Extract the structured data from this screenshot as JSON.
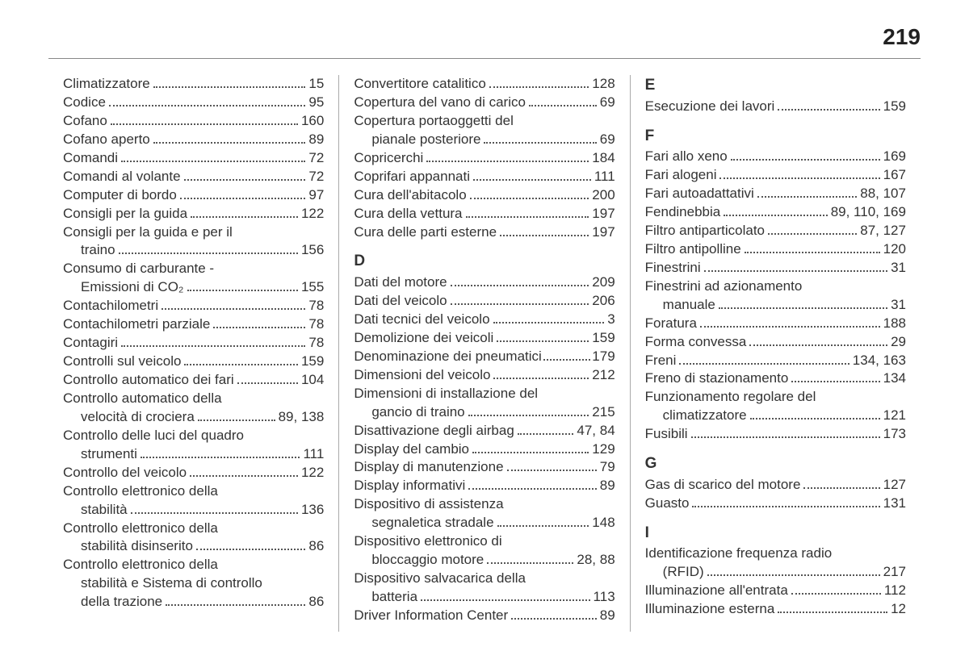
{
  "page_number": "219",
  "columns": [
    {
      "sections": [
        {
          "letter": null,
          "entries": [
            {
              "label": "Climatizzatore",
              "page": "15"
            },
            {
              "label": "Codice",
              "page": "95"
            },
            {
              "label": "Cofano",
              "page": "160"
            },
            {
              "label": "Cofano aperto",
              "page": "89"
            },
            {
              "label": "Comandi",
              "page": "72"
            },
            {
              "label": "Comandi al volante",
              "page": "72"
            },
            {
              "label": "Computer di bordo",
              "page": "97"
            },
            {
              "label": "Consigli per la guida",
              "page": "122"
            },
            {
              "label_lines": [
                "Consigli per la guida e per il",
                "traino"
              ],
              "page": "156"
            },
            {
              "label_lines": [
                "Consumo di carburante -",
                "Emissioni di CO₂"
              ],
              "page": "155"
            },
            {
              "label": "Contachilometri",
              "page": "78"
            },
            {
              "label": "Contachilometri parziale",
              "page": "78"
            },
            {
              "label": "Contagiri",
              "page": "78"
            },
            {
              "label": "Controlli sul veicolo",
              "page": "159"
            },
            {
              "label": "Controllo automatico dei fari",
              "page": "104"
            },
            {
              "label_lines": [
                "Controllo automatico della",
                "velocità di crociera"
              ],
              "page": "89, 138"
            },
            {
              "label_lines": [
                "Controllo delle luci del quadro",
                "strumenti"
              ],
              "page": "111"
            },
            {
              "label": "Controllo del veicolo",
              "page": "122"
            },
            {
              "label_lines": [
                "Controllo elettronico della",
                "stabilità"
              ],
              "page": "136"
            },
            {
              "label_lines": [
                "Controllo elettronico della",
                "stabilità disinserito"
              ],
              "page": "86"
            },
            {
              "label_lines": [
                "Controllo elettronico della",
                "stabilità e Sistema di controllo",
                "della trazione"
              ],
              "page": "86"
            }
          ]
        }
      ]
    },
    {
      "sections": [
        {
          "letter": null,
          "entries": [
            {
              "label": "Convertitore catalitico",
              "page": "128"
            },
            {
              "label": "Copertura del vano di carico",
              "page": "69"
            },
            {
              "label_lines": [
                "Copertura portaoggetti del",
                "pianale posteriore"
              ],
              "page": "69"
            },
            {
              "label": "Copricerchi",
              "page": "184"
            },
            {
              "label": "Coprifari appannati",
              "page": "111"
            },
            {
              "label": "Cura dell'abitacolo",
              "page": "200"
            },
            {
              "label": "Cura della vettura",
              "page": "197"
            },
            {
              "label": "Cura delle parti esterne",
              "page": "197"
            }
          ]
        },
        {
          "letter": "D",
          "entries": [
            {
              "label": "Dati del motore",
              "page": "209"
            },
            {
              "label": "Dati del veicolo",
              "page": "206"
            },
            {
              "label": "Dati tecnici del veicolo",
              "page": "3"
            },
            {
              "label": "Demolizione dei veicoli",
              "page": "159"
            },
            {
              "label": "Denominazione dei pneumatici",
              "page": "179",
              "tight": true
            },
            {
              "label": "Dimensioni del veicolo",
              "page": "212"
            },
            {
              "label_lines": [
                "Dimensioni di installazione del",
                "gancio di traino"
              ],
              "page": "215"
            },
            {
              "label": "Disattivazione degli airbag",
              "page": "47, 84"
            },
            {
              "label": "Display del cambio",
              "page": "129"
            },
            {
              "label": "Display di manutenzione",
              "page": "79"
            },
            {
              "label": "Display informativi",
              "page": "89"
            },
            {
              "label_lines": [
                "Dispositivo di assistenza",
                "segnaletica stradale"
              ],
              "page": "148"
            },
            {
              "label_lines": [
                "Dispositivo elettronico di",
                "bloccaggio motore"
              ],
              "page": "28, 88"
            },
            {
              "label_lines": [
                "Dispositivo salvacarica della",
                "batteria"
              ],
              "page": "113"
            },
            {
              "label": "Driver Information Center",
              "page": "89"
            }
          ]
        }
      ]
    },
    {
      "sections": [
        {
          "letter": "E",
          "entries": [
            {
              "label": "Esecuzione dei lavori",
              "page": "159"
            }
          ]
        },
        {
          "letter": "F",
          "entries": [
            {
              "label": "Fari allo xeno",
              "page": "169"
            },
            {
              "label": "Fari alogeni",
              "page": "167"
            },
            {
              "label": "Fari autoadattativi",
              "page": "88, 107"
            },
            {
              "label": "Fendinebbia",
              "page": "89, 110, 169"
            },
            {
              "label": "Filtro antiparticolato",
              "page": "87, 127"
            },
            {
              "label": "Filtro antipolline",
              "page": "120"
            },
            {
              "label": "Finestrini",
              "page": "31"
            },
            {
              "label_lines": [
                "Finestrini ad azionamento",
                "manuale"
              ],
              "page": "31"
            },
            {
              "label": "Foratura",
              "page": "188"
            },
            {
              "label": "Forma convessa",
              "page": "29"
            },
            {
              "label": "Freni",
              "page": "134, 163"
            },
            {
              "label": "Freno di stazionamento",
              "page": "134"
            },
            {
              "label_lines": [
                "Funzionamento regolare del",
                "climatizzatore"
              ],
              "page": "121"
            },
            {
              "label": "Fusibili",
              "page": "173"
            }
          ]
        },
        {
          "letter": "G",
          "entries": [
            {
              "label": "Gas di scarico del motore",
              "page": "127"
            },
            {
              "label": "Guasto",
              "page": "131"
            }
          ]
        },
        {
          "letter": "I",
          "entries": [
            {
              "label_lines": [
                "Identificazione frequenza radio",
                "(RFID)"
              ],
              "page": "217"
            },
            {
              "label": "Illuminazione all'entrata",
              "page": "112"
            },
            {
              "label": "Illuminazione esterna",
              "page": "12"
            }
          ]
        }
      ]
    }
  ]
}
